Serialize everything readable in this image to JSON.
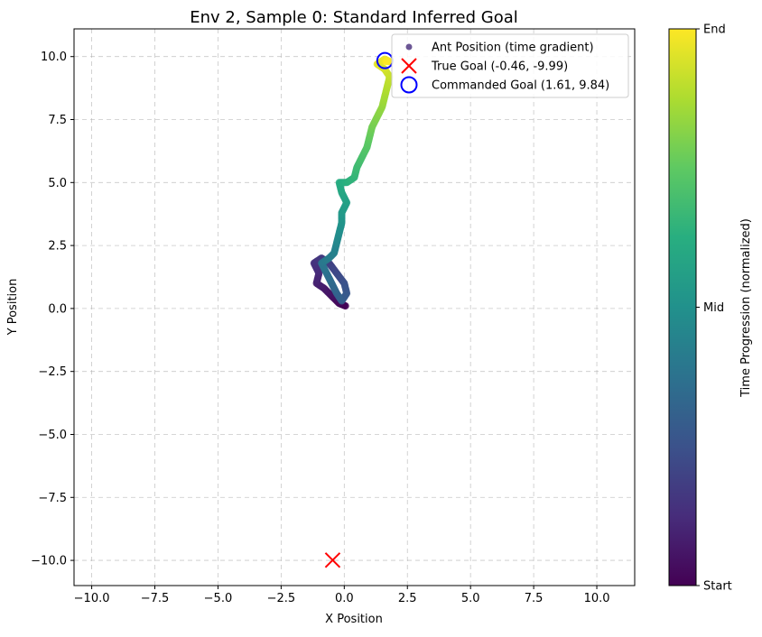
{
  "chart_data": {
    "type": "scatter",
    "title": "Env 2, Sample 0: Standard Inferred Goal",
    "xlabel": "X Position",
    "ylabel": "Y Position",
    "xlim": [
      -10.7,
      11.5
    ],
    "ylim": [
      -11.0,
      11.1
    ],
    "x_ticks": [
      -10.0,
      -7.5,
      -5.0,
      -2.5,
      0.0,
      2.5,
      5.0,
      7.5,
      10.0
    ],
    "y_ticks": [
      -10.0,
      -7.5,
      -5.0,
      -2.5,
      0.0,
      2.5,
      5.0,
      7.5,
      10.0
    ],
    "x_tick_labels": [
      "−10.0",
      "−7.5",
      "−5.0",
      "−2.5",
      "0.0",
      "2.5",
      "5.0",
      "7.5",
      "10.0"
    ],
    "y_tick_labels": [
      "−10.0",
      "−7.5",
      "−5.0",
      "−2.5",
      "0.0",
      "2.5",
      "5.0",
      "7.5",
      "10.0"
    ],
    "grid": true,
    "legend_position": "top-right",
    "colormap": "viridis",
    "colors": {
      "true_goal": "#ff0000",
      "commanded_goal": "#0000ff"
    },
    "series": [
      {
        "name": "Ant Position (time gradient)",
        "marker": "dot",
        "color_by": "time",
        "points": [
          [
            0.05,
            0.1
          ],
          [
            -0.2,
            0.2
          ],
          [
            -0.4,
            0.4
          ],
          [
            -0.6,
            0.6
          ],
          [
            -0.8,
            0.8
          ],
          [
            -1.1,
            1.0
          ],
          [
            -1.0,
            1.4
          ],
          [
            -1.2,
            1.8
          ],
          [
            -0.9,
            2.0
          ],
          [
            -0.6,
            1.8
          ],
          [
            -0.3,
            1.4
          ],
          [
            0.0,
            1.0
          ],
          [
            0.1,
            0.6
          ],
          [
            -0.1,
            0.3
          ],
          [
            -0.3,
            0.6
          ],
          [
            -0.5,
            1.0
          ],
          [
            -0.7,
            1.4
          ],
          [
            -0.9,
            1.8
          ],
          [
            -0.6,
            2.0
          ],
          [
            -0.4,
            2.2
          ],
          [
            -0.3,
            2.6
          ],
          [
            -0.2,
            3.0
          ],
          [
            -0.1,
            3.4
          ],
          [
            -0.1,
            3.8
          ],
          [
            0.1,
            4.2
          ],
          [
            -0.1,
            4.6
          ],
          [
            -0.2,
            5.0
          ],
          [
            0.1,
            5.0
          ],
          [
            0.4,
            5.2
          ],
          [
            0.5,
            5.6
          ],
          [
            0.7,
            6.0
          ],
          [
            0.9,
            6.4
          ],
          [
            1.0,
            6.8
          ],
          [
            1.1,
            7.2
          ],
          [
            1.3,
            7.6
          ],
          [
            1.5,
            8.0
          ],
          [
            1.6,
            8.4
          ],
          [
            1.7,
            8.8
          ],
          [
            1.8,
            9.2
          ],
          [
            1.6,
            9.5
          ],
          [
            1.3,
            9.7
          ],
          [
            1.6,
            9.9
          ],
          [
            1.8,
            9.8
          ],
          [
            1.6,
            9.8
          ]
        ]
      },
      {
        "name": "True Goal (-0.46, -9.99)",
        "marker": "x",
        "points": [
          [
            -0.46,
            -9.99
          ]
        ]
      },
      {
        "name": "Commanded Goal (1.61, 9.84)",
        "marker": "circle",
        "points": [
          [
            1.61,
            9.84
          ]
        ]
      }
    ],
    "colorbar": {
      "label": "Time Progression (normalized)",
      "ticks": [
        {
          "value": 1.0,
          "label": "End"
        },
        {
          "value": 0.5,
          "label": "Mid"
        },
        {
          "value": 0.0,
          "label": "Start"
        }
      ]
    }
  }
}
